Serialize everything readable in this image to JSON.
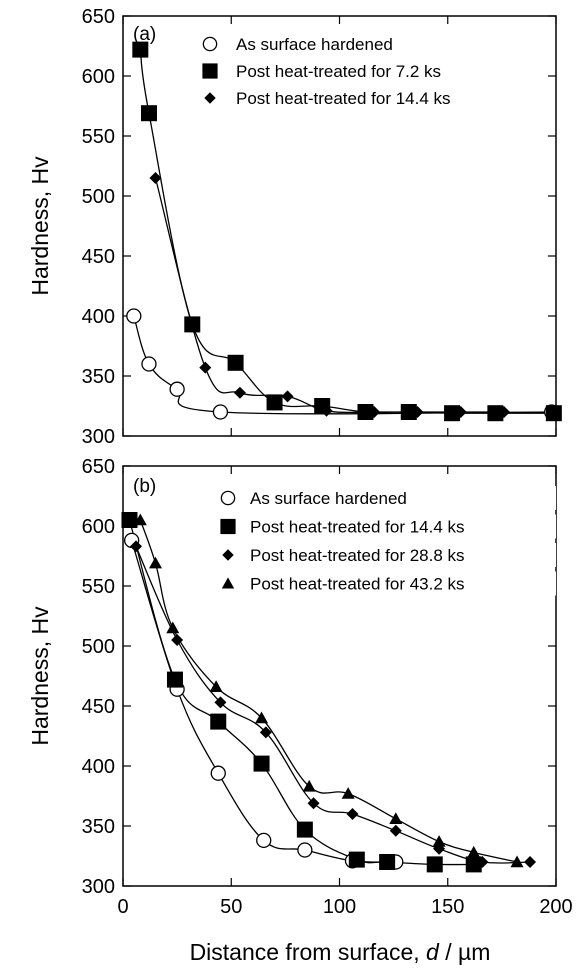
{
  "chart_data": [
    {
      "type": "line",
      "panel_label": "(a)",
      "xlim": [
        0,
        200
      ],
      "ylim": [
        300,
        650
      ],
      "x_ticks": [],
      "y_ticks": [
        "300",
        "350",
        "400",
        "450",
        "500",
        "550",
        "600",
        "650"
      ],
      "xlabel": "",
      "ylabel": "Hardness, Hv",
      "legend_position": "top-right",
      "series": [
        {
          "name": "As surface hardened",
          "marker": "circle-open",
          "x": [
            5,
            12,
            25,
            45,
            198
          ],
          "y": [
            400,
            360,
            339,
            320,
            320
          ]
        },
        {
          "name": "Post heat-treated for 7.2 ks",
          "marker": "square",
          "x": [
            8,
            12,
            32,
            52,
            70,
            92,
            112,
            132,
            152,
            172,
            199
          ],
          "y": [
            622,
            569,
            393,
            361,
            328,
            325,
            320,
            320,
            319,
            319,
            319
          ]
        },
        {
          "name": "Post heat-treated for 14.4 ks",
          "marker": "diamond",
          "x": [
            15,
            38,
            54,
            76,
            94,
            116,
            136,
            156,
            176
          ],
          "y": [
            515,
            357,
            336,
            333,
            321,
            320,
            320,
            320,
            320
          ]
        }
      ]
    },
    {
      "type": "line",
      "panel_label": "(b)",
      "xlim": [
        0,
        200
      ],
      "ylim": [
        300,
        650
      ],
      "x_ticks": [
        "0",
        "50",
        "100",
        "150",
        "200"
      ],
      "y_ticks": [
        "300",
        "350",
        "400",
        "450",
        "500",
        "550",
        "600",
        "650"
      ],
      "xlabel_prefix": "Distance from surface, ",
      "xlabel_var": "d",
      "xlabel_suffix": " / µm",
      "ylabel": "Hardness, Hv",
      "legend_position": "top-right",
      "series": [
        {
          "name": "As surface hardened",
          "marker": "circle-open",
          "x": [
            4,
            25,
            44,
            65,
            84,
            106,
            126
          ],
          "y": [
            588,
            464,
            394,
            338,
            330,
            321,
            320
          ]
        },
        {
          "name": "Post heat-treated for 14.4 ks",
          "marker": "square",
          "x": [
            3,
            24,
            44,
            64,
            84,
            108,
            122,
            144,
            162
          ],
          "y": [
            605,
            472,
            437,
            402,
            347,
            322,
            320,
            318,
            318
          ]
        },
        {
          "name": "Post heat-treated for 28.8 ks",
          "marker": "diamond",
          "x": [
            6,
            25,
            45,
            66,
            88,
            106,
            126,
            146,
            166,
            188
          ],
          "y": [
            583,
            505,
            453,
            428,
            369,
            360,
            346,
            331,
            320,
            320
          ]
        },
        {
          "name": "Post heat-treated for 43.2 ks",
          "marker": "triangle",
          "x": [
            8,
            15,
            23,
            43,
            64,
            86,
            104,
            126,
            146,
            162,
            182
          ],
          "y": [
            605,
            569,
            515,
            466,
            440,
            383,
            377,
            356,
            337,
            328,
            320
          ]
        }
      ]
    }
  ]
}
